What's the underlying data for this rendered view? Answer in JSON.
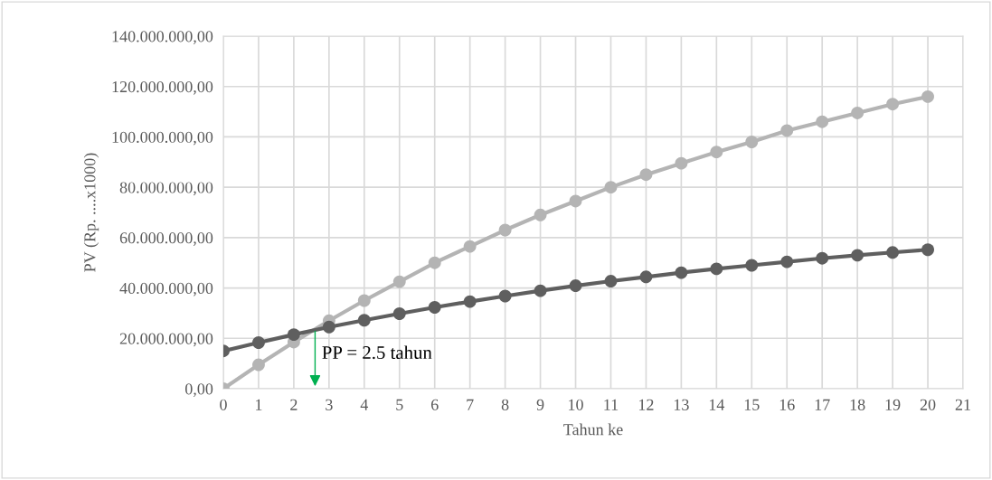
{
  "chart_data": {
    "type": "line",
    "xlabel": "Tahun ke",
    "ylabel": "PV (Rp. ....x1000)",
    "x": [
      0,
      1,
      2,
      3,
      4,
      5,
      6,
      7,
      8,
      9,
      10,
      11,
      12,
      13,
      14,
      15,
      16,
      17,
      18,
      19,
      20
    ],
    "series": [
      {
        "color": "#b4b4b4",
        "values": [
          0,
          9500000,
          18500000,
          27000000,
          35000000,
          42500000,
          50000000,
          56500000,
          63000000,
          69000000,
          74500000,
          80000000,
          85000000,
          89500000,
          94000000,
          98000000,
          102500000,
          106000000,
          109500000,
          113000000,
          116000000
        ]
      },
      {
        "color": "#5f5f5f",
        "values": [
          15000000,
          18300000,
          21500000,
          24500000,
          27200000,
          29800000,
          32300000,
          34600000,
          36800000,
          38900000,
          40900000,
          42700000,
          44400000,
          46100000,
          47600000,
          49000000,
          50400000,
          51800000,
          53000000,
          54100000,
          55200000
        ]
      }
    ],
    "xlim": [
      0,
      21
    ],
    "xticks": [
      0,
      1,
      2,
      3,
      4,
      5,
      6,
      7,
      8,
      9,
      10,
      11,
      12,
      13,
      14,
      15,
      16,
      17,
      18,
      19,
      20,
      21
    ],
    "ylim": [
      0,
      140000000
    ],
    "yticks": [
      {
        "value": 0,
        "label": "0,00"
      },
      {
        "value": 20000000,
        "label": "20.000.000,00"
      },
      {
        "value": 40000000,
        "label": "40.000.000,00"
      },
      {
        "value": 60000000,
        "label": "60.000.000,00"
      },
      {
        "value": 80000000,
        "label": "80.000.000,00"
      },
      {
        "value": 100000000,
        "label": "100.000.000,00"
      },
      {
        "value": 120000000,
        "label": "120.000.000,00"
      },
      {
        "value": 140000000,
        "label": "140.000.000,00"
      }
    ],
    "grid": true,
    "marker": "circle",
    "line_style": "solid",
    "annotations": [
      "PP = 2.5 tahun"
    ]
  }
}
